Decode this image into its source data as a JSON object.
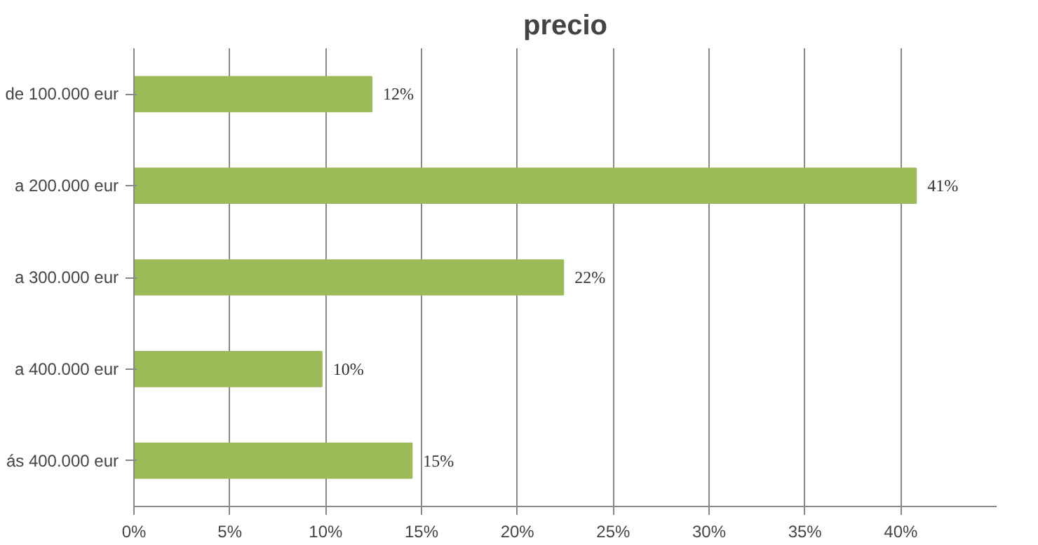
{
  "chart_data": {
    "type": "bar",
    "orientation": "horizontal",
    "title": "precio",
    "categories": [
      "de 100.000 eur",
      "a 200.000 eur",
      "a 300.000 eur",
      "a 400.000 eur",
      "ás 400.000 eur"
    ],
    "values": [
      12.4,
      40.8,
      22.4,
      9.8,
      14.5
    ],
    "value_labels": [
      "12%",
      "41%",
      "22%",
      "10%",
      "15%"
    ],
    "color": "#9bbb59",
    "xlim": [
      0,
      45
    ],
    "xticks": [
      {
        "value": 0,
        "label": "0%"
      },
      {
        "value": 5,
        "label": "5%"
      },
      {
        "value": 10,
        "label": "10%"
      },
      {
        "value": 15,
        "label": "15%"
      },
      {
        "value": 20,
        "label": "20%"
      },
      {
        "value": 25,
        "label": "25%"
      },
      {
        "value": 30,
        "label": "30%"
      },
      {
        "value": 35,
        "label": "35%"
      },
      {
        "value": 40,
        "label": "40%"
      }
    ],
    "grid": "x"
  }
}
